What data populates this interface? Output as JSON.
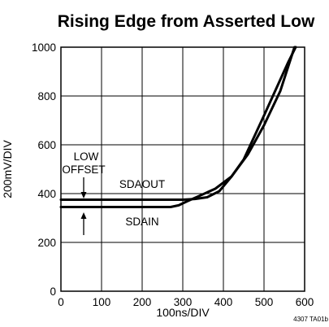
{
  "chart_data": {
    "type": "line",
    "title": "Rising Edge from Asserted Low",
    "xlabel": "100ns/DIV",
    "ylabel": "200mV/DIV",
    "xlim": [
      0,
      600
    ],
    "ylim": [
      0,
      1000
    ],
    "x_ticks": [
      0,
      100,
      200,
      300,
      400,
      500,
      600
    ],
    "y_ticks": [
      0,
      200,
      400,
      600,
      800,
      1000
    ],
    "grid": true,
    "series": [
      {
        "name": "SDAOUT",
        "x": [
          0,
          300,
          330,
          360,
          390,
          420,
          450,
          500,
          530,
          560,
          578
        ],
        "y": [
          375,
          375,
          378,
          385,
          410,
          470,
          540,
          720,
          830,
          940,
          1000
        ]
      },
      {
        "name": "SDAIN",
        "x": [
          0,
          270,
          290,
          310,
          340,
          380,
          420,
          460,
          500,
          540,
          575
        ],
        "y": [
          345,
          345,
          352,
          368,
          390,
          420,
          470,
          560,
          680,
          820,
          1000
        ]
      }
    ],
    "annotations": [
      "LOW",
      "OFFSET",
      "SDAOUT",
      "SDAIN"
    ],
    "footnote": "4307 TA01b"
  }
}
